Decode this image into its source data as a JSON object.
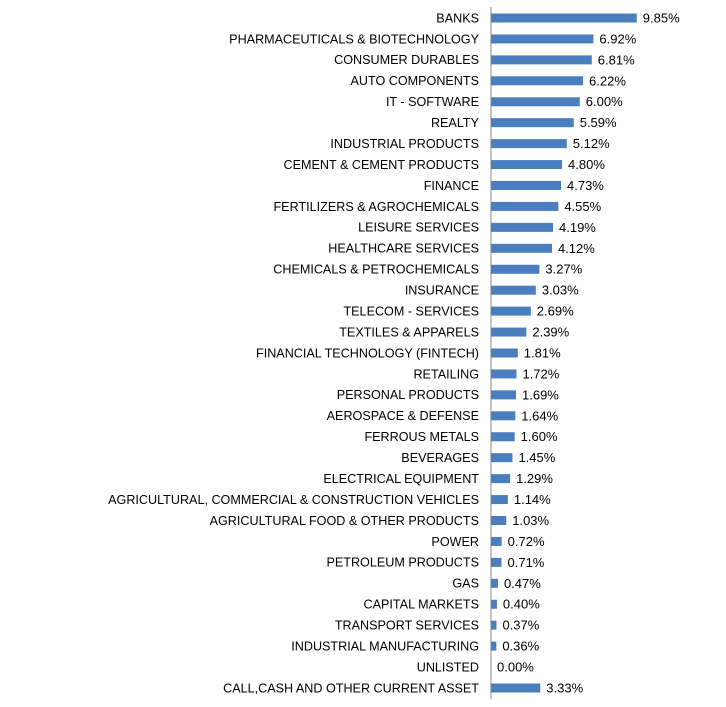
{
  "chart_data": {
    "type": "bar",
    "orientation": "horizontal",
    "color": "#4a7ebf",
    "categories": [
      "BANKS",
      "PHARMACEUTICALS & BIOTECHNOLOGY",
      "CONSUMER DURABLES",
      "AUTO COMPONENTS",
      "IT - SOFTWARE",
      "REALTY",
      "INDUSTRIAL PRODUCTS",
      "CEMENT & CEMENT PRODUCTS",
      "FINANCE",
      "FERTILIZERS & AGROCHEMICALS",
      "LEISURE SERVICES",
      "HEALTHCARE SERVICES",
      "CHEMICALS & PETROCHEMICALS",
      "INSURANCE",
      "TELECOM - SERVICES",
      "TEXTILES & APPARELS",
      "FINANCIAL TECHNOLOGY (FINTECH)",
      "RETAILING",
      "PERSONAL PRODUCTS",
      "AEROSPACE & DEFENSE",
      "FERROUS METALS",
      "BEVERAGES",
      "ELECTRICAL EQUIPMENT",
      "AGRICULTURAL, COMMERCIAL & CONSTRUCTION VEHICLES",
      "AGRICULTURAL FOOD & OTHER PRODUCTS",
      "POWER",
      "PETROLEUM PRODUCTS",
      "GAS",
      "CAPITAL MARKETS",
      "TRANSPORT SERVICES",
      "INDUSTRIAL MANUFACTURING",
      "UNLISTED",
      "CALL,CASH AND OTHER CURRENT ASSET"
    ],
    "values": [
      9.85,
      6.92,
      6.81,
      6.22,
      6.0,
      5.59,
      5.12,
      4.8,
      4.73,
      4.55,
      4.19,
      4.12,
      3.27,
      3.03,
      2.69,
      2.39,
      1.81,
      1.72,
      1.69,
      1.64,
      1.6,
      1.45,
      1.29,
      1.14,
      1.03,
      0.72,
      0.71,
      0.47,
      0.4,
      0.37,
      0.36,
      0.0,
      3.33
    ],
    "value_labels": [
      "9.85%",
      "6.92%",
      "6.81%",
      "6.22%",
      "6.00%",
      "5.59%",
      "5.12%",
      "4.80%",
      "4.73%",
      "4.55%",
      "4.19%",
      "4.12%",
      "3.27%",
      "3.03%",
      "2.69%",
      "2.39%",
      "1.81%",
      "1.72%",
      "1.69%",
      "1.64%",
      "1.60%",
      "1.45%",
      "1.29%",
      "1.14%",
      "1.03%",
      "0.72%",
      "0.71%",
      "0.47%",
      "0.40%",
      "0.37%",
      "0.36%",
      "0.00%",
      "3.33%"
    ]
  }
}
